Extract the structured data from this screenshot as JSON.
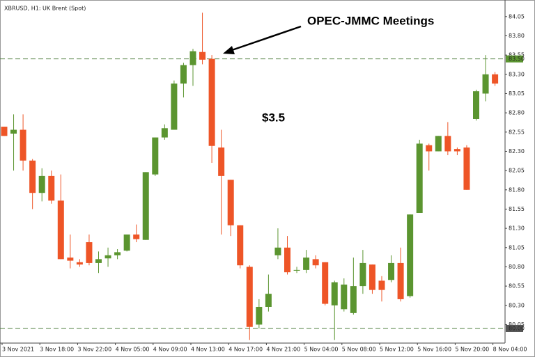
{
  "chart_data": {
    "type": "candlestick",
    "title": "XBRUSD, H1: UK Brent (Spot)",
    "annotations": [
      "OPEC-JMMC Meetings",
      "$3.5"
    ],
    "categories": [
      "3 Nov 2021",
      null,
      null,
      null,
      "3 Nov 18:00",
      null,
      null,
      null,
      "3 Nov 22:00",
      null,
      null,
      null,
      "4 Nov 05:00",
      null,
      null,
      null,
      "4 Nov 09:00",
      null,
      null,
      null,
      "4 Nov 13:00",
      null,
      null,
      null,
      "4 Nov 17:00",
      null,
      null,
      null,
      "4 Nov 21:00",
      null,
      null,
      null,
      "5 Nov 04:00",
      null,
      null,
      null,
      "5 Nov 08:00",
      null,
      null,
      null,
      "5 Nov 12:00",
      null,
      null,
      null,
      "5 Nov 16:00",
      null,
      null,
      null,
      "5 Nov 20:00",
      null,
      null,
      null,
      "8 Nov 04:00"
    ],
    "open": [
      82.62,
      82.53,
      82.58,
      82.18,
      81.76,
      81.98,
      81.66,
      80.92,
      80.86,
      81.12,
      80.85,
      80.91,
      80.95,
      81.01,
      81.22,
      81.15,
      82.0,
      82.48,
      82.58,
      83.18,
      83.42,
      83.59,
      83.5,
      82.35,
      81.93,
      81.34,
      80.8,
      80.05,
      80.28,
      80.95,
      81.05,
      80.75,
      80.76,
      80.9,
      80.86,
      80.3,
      80.25,
      80.2,
      80.55,
      80.83,
      80.62,
      80.63,
      80.85,
      80.42,
      81.5,
      82.38,
      82.3,
      82.5,
      82.33,
      82.35,
      82.72,
      83.05,
      83.3
    ],
    "high": [
      82.62,
      82.78,
      82.78,
      82.2,
      82.08,
      82.05,
      82.0,
      81.22,
      80.9,
      81.22,
      81.0,
      81.05,
      81.03,
      81.22,
      81.35,
      82.03,
      82.48,
      82.65,
      83.22,
      83.45,
      83.63,
      84.1,
      83.55,
      82.58,
      81.93,
      81.34,
      80.82,
      80.38,
      80.7,
      81.3,
      81.2,
      80.8,
      81.02,
      80.95,
      80.86,
      80.62,
      80.65,
      80.92,
      81.02,
      80.83,
      80.68,
      80.95,
      81.05,
      81.48,
      82.45,
      82.4,
      82.5,
      82.68,
      82.35,
      82.38,
      83.1,
      83.55,
      83.33
    ],
    "low": [
      82.5,
      82.05,
      82.05,
      81.55,
      81.65,
      81.62,
      80.9,
      80.78,
      80.8,
      80.82,
      80.72,
      80.8,
      80.9,
      81.0,
      81.12,
      81.15,
      81.98,
      82.45,
      82.58,
      83.0,
      83.15,
      83.43,
      82.15,
      81.22,
      81.2,
      80.78,
      79.85,
      80.0,
      80.22,
      80.9,
      80.7,
      80.72,
      80.72,
      80.78,
      80.3,
      79.85,
      80.22,
      80.18,
      80.45,
      80.45,
      80.35,
      80.6,
      80.35,
      80.4,
      81.5,
      82.05,
      82.3,
      82.25,
      82.25,
      81.8,
      82.7,
      82.95,
      83.15
    ],
    "close": [
      82.5,
      82.58,
      82.18,
      81.76,
      81.98,
      81.66,
      80.9,
      80.88,
      80.83,
      80.85,
      80.9,
      80.95,
      80.99,
      81.22,
      81.16,
      82.03,
      82.48,
      82.6,
      83.18,
      83.42,
      83.6,
      83.49,
      82.37,
      81.98,
      81.34,
      80.82,
      80.02,
      80.28,
      80.45,
      81.05,
      80.73,
      80.76,
      80.92,
      80.82,
      80.32,
      80.6,
      80.57,
      80.55,
      80.85,
      80.5,
      80.5,
      80.85,
      80.38,
      81.48,
      82.4,
      82.3,
      82.5,
      82.3,
      82.3,
      81.8,
      83.08,
      83.3,
      83.18
    ],
    "up_color": "#5b9530",
    "down_color": "#ee5527",
    "ylim": [
      79.81,
      84.22
    ],
    "yticks": [
      84.05,
      {
        "value": 83.8,
        "label": "83.80"
      },
      83.55,
      {
        "value": 83.3,
        "label": "83.30"
      },
      83.05,
      {
        "value": 82.8,
        "label": "82.80"
      },
      82.55,
      {
        "value": 82.3,
        "label": "82.30"
      },
      82.05,
      {
        "value": 81.8,
        "label": "81.80"
      },
      81.55,
      {
        "value": 81.3,
        "label": "81.30"
      },
      81.05,
      {
        "value": 80.8,
        "label": "80.80"
      },
      80.55,
      {
        "value": 80.3,
        "label": "80.30"
      },
      80.05
    ],
    "hlines": [
      {
        "value": 83.5,
        "label": "83.50",
        "color": "#5b9530"
      },
      {
        "value": 80,
        "label": "80.00",
        "color": "#555555"
      }
    ]
  }
}
